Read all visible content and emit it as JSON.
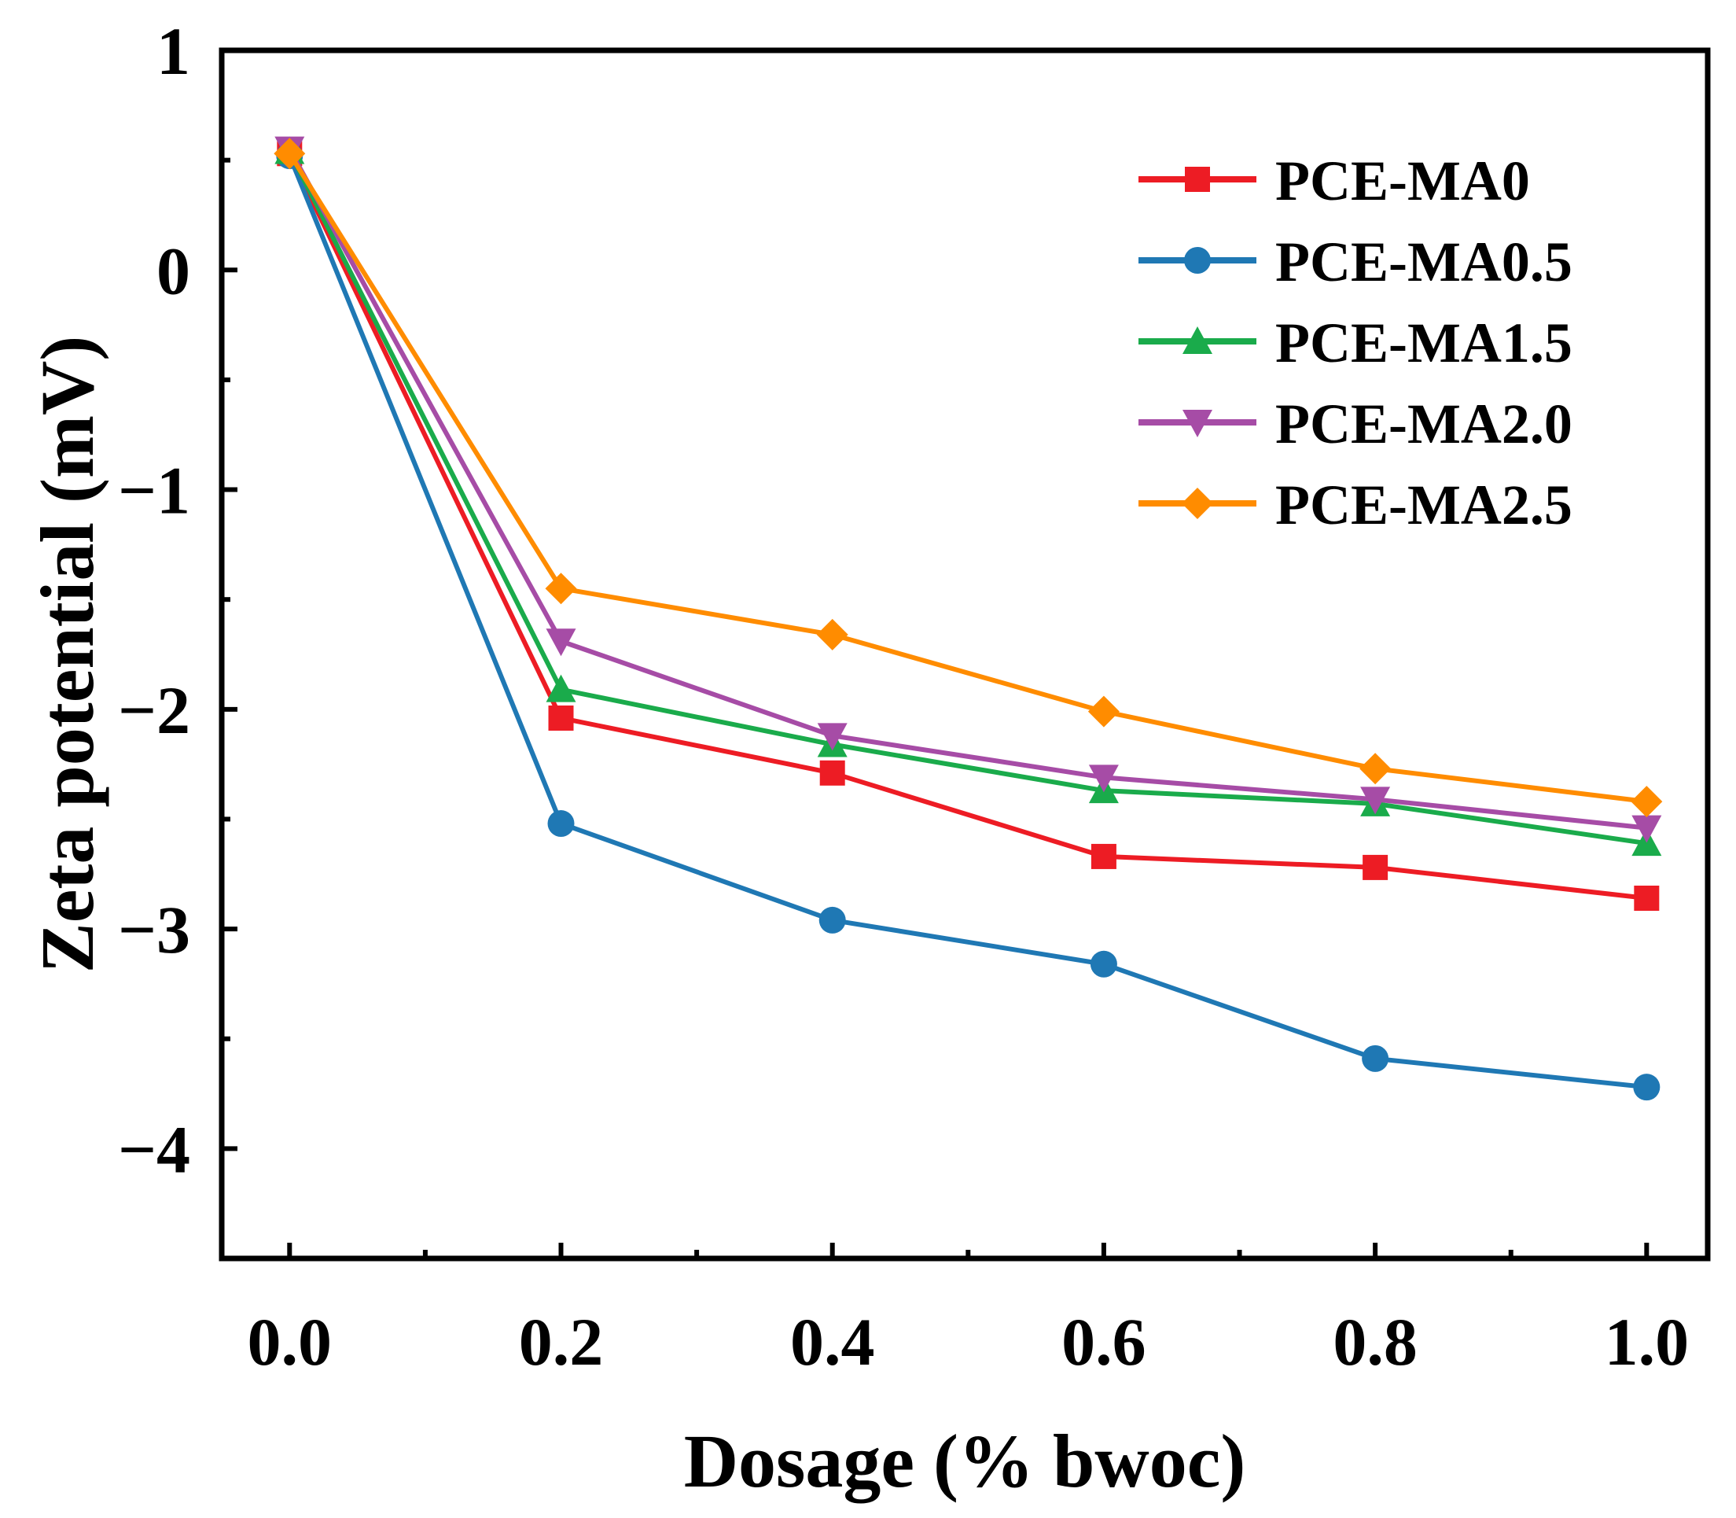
{
  "chart_data": {
    "type": "line",
    "title": "",
    "xlabel": "Dosage (% bwoc)",
    "ylabel": "Zeta potential (mV)",
    "xlim": [
      -0.05,
      1.045
    ],
    "ylim": [
      -4.5,
      1.0
    ],
    "x": [
      0.0,
      0.2,
      0.4,
      0.6,
      0.8,
      1.0
    ],
    "x_ticks": [
      "0.0",
      "0.2",
      "0.4",
      "0.6",
      "0.8",
      "1.0"
    ],
    "y_tick_values": [
      1,
      0,
      -1,
      -2,
      -3,
      -4
    ],
    "y_ticks": [
      "1",
      "0",
      "−1",
      "−2",
      "−3",
      "−4"
    ],
    "grid": false,
    "legend_position": "top-right",
    "series": [
      {
        "name": "PCE-MA0",
        "color": "#ed1c24",
        "marker": "square",
        "values": [
          0.53,
          -2.04,
          -2.29,
          -2.67,
          -2.72,
          -2.86
        ]
      },
      {
        "name": "PCE-MA0.5",
        "color": "#1f78b4",
        "marker": "circle",
        "values": [
          0.52,
          -2.52,
          -2.96,
          -3.16,
          -3.59,
          -3.72
        ]
      },
      {
        "name": "PCE-MA1.5",
        "color": "#1aab4b",
        "marker": "triangle-up",
        "values": [
          0.54,
          -1.91,
          -2.16,
          -2.37,
          -2.43,
          -2.61
        ]
      },
      {
        "name": "PCE-MA2.0",
        "color": "#a64ca6",
        "marker": "triangle-down",
        "values": [
          0.55,
          -1.69,
          -2.12,
          -2.31,
          -2.41,
          -2.54
        ]
      },
      {
        "name": "PCE-MA2.5",
        "color": "#ff8c00",
        "marker": "diamond",
        "values": [
          0.53,
          -1.45,
          -1.66,
          -2.01,
          -2.27,
          -2.42
        ]
      }
    ]
  }
}
